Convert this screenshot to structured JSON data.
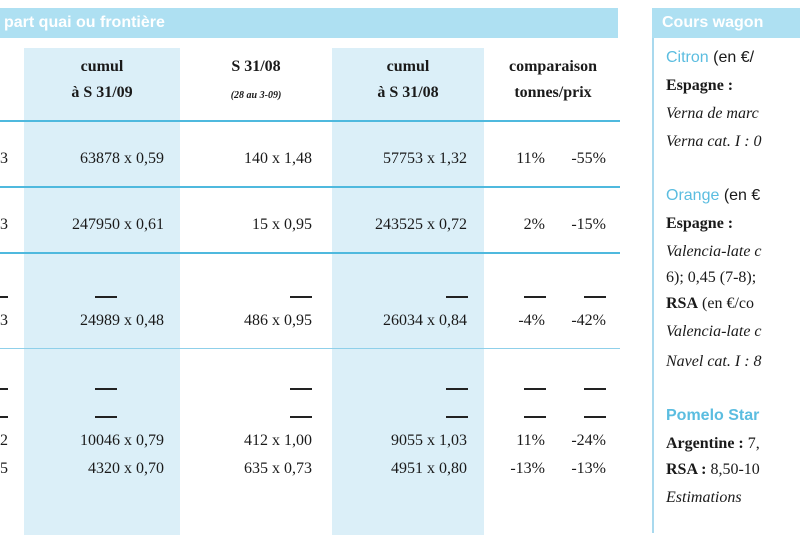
{
  "left": {
    "header": "part quai ou frontière",
    "columns": [
      {
        "line1": "cumul",
        "line2": "à S 31/09"
      },
      {
        "line1": "S 31/08",
        "sub": "(28 au 3-09)"
      },
      {
        "line1": "cumul",
        "line2": "à S 31/08"
      },
      {
        "line1": "comparaison",
        "line2": "tonnes/prix"
      }
    ],
    "rows": [
      {
        "edge": "3",
        "c1": "63878 x 0,59",
        "c2": "140 x 1,48",
        "c3": "57753 x 1,32",
        "cmp1": "11%",
        "cmp2": "-55%"
      },
      {
        "edge": "3",
        "c1": "247950 x 0,61",
        "c2": "15 x 0,95",
        "c3": "243525 x 0,72",
        "cmp1": "2%",
        "cmp2": "-15%"
      },
      {
        "edge": "3",
        "c1": "24989 x 0,48",
        "c2": "486 x 0,95",
        "c3": "26034 x 0,84",
        "cmp1": "-4%",
        "cmp2": "-42%"
      },
      {
        "edge": "2",
        "c1": "10046 x 0,79",
        "c2": "412 x 1,00",
        "c3": "9055 x 1,03",
        "cmp1": "11%",
        "cmp2": "-24%"
      },
      {
        "edge": "5",
        "c1": "4320 x 0,70",
        "c2": "635 x 0,73",
        "c3": "4951 x 0,80",
        "cmp1": "-13%",
        "cmp2": "-13%"
      }
    ]
  },
  "right": {
    "header": "Cours wagon",
    "lines": [
      {
        "text": "Citron",
        "rest": " (en €/"
      },
      {
        "text": "Espagne :"
      },
      {
        "text": "Verna de marc"
      },
      {
        "text": "Verna cat. I : 0"
      },
      {
        "text": "Orange",
        "rest": " (en €"
      },
      {
        "text": "Espagne :"
      },
      {
        "text": "Valencia-late c"
      },
      {
        "text": "6); 0,45 (7-8);"
      },
      {
        "text": "RSA",
        "rest": " (en €/co"
      },
      {
        "text": "Valencia-late c"
      },
      {
        "text": "Navel cat. I : 8"
      },
      {
        "text": "Pomelo Star"
      },
      {
        "text": "Argentine :",
        "rest": " 7,"
      },
      {
        "text": "RSA :",
        "rest": " 8,50-10"
      },
      {
        "text": "Estimations"
      }
    ]
  }
}
